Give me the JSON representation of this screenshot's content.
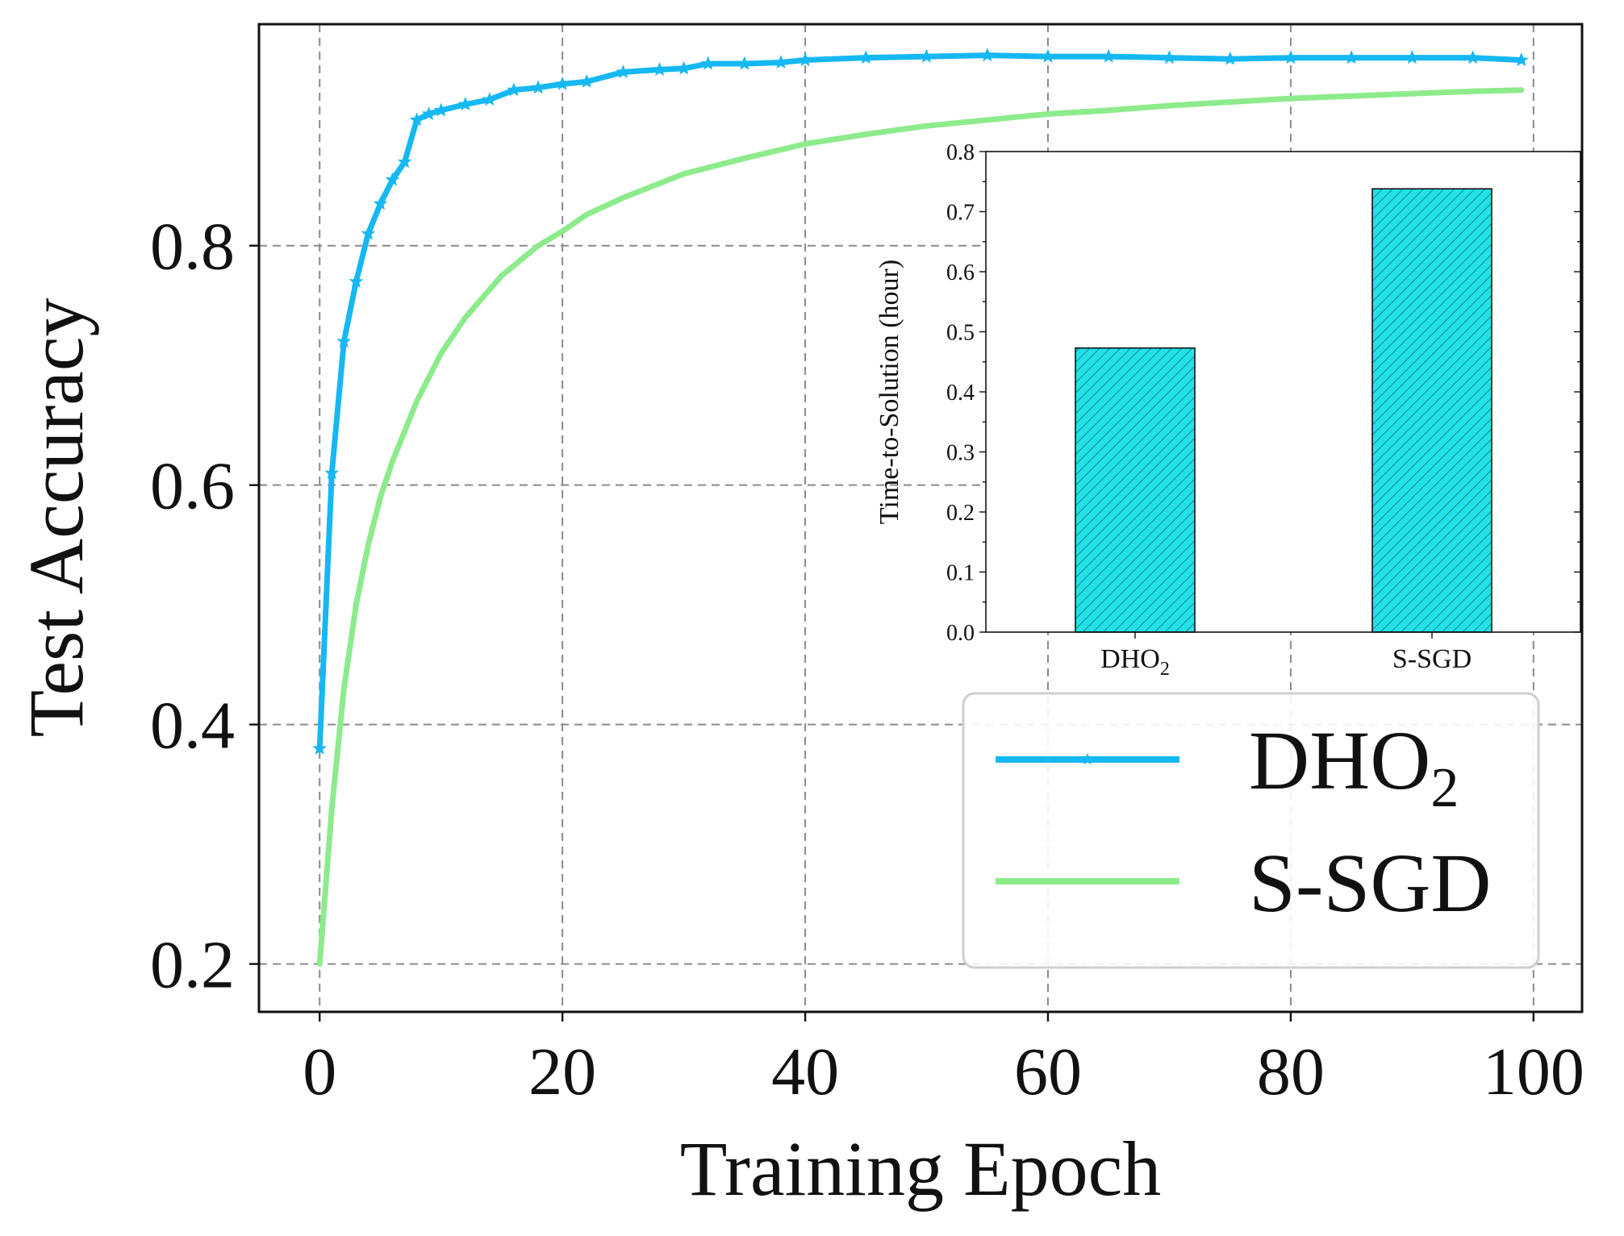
{
  "chart_data": [
    {
      "type": "line",
      "xlabel": "Training Epoch",
      "ylabel": "Test Accuracy",
      "xlim": [
        -5,
        104
      ],
      "ylim": [
        0.16,
        0.985
      ],
      "xticks": [
        0,
        20,
        40,
        60,
        80,
        100
      ],
      "yticks": [
        0.2,
        0.4,
        0.6,
        0.8
      ],
      "xtick_labels": [
        "0",
        "20",
        "40",
        "60",
        "80",
        "100"
      ],
      "ytick_labels": [
        "0.2",
        "0.4",
        "0.6",
        "0.8"
      ],
      "grid": true,
      "legend_position": "lower-right",
      "series": [
        {
          "name": "DHO",
          "name_subscript": "2",
          "color": "#16b8f3",
          "marker": "star",
          "x": [
            0,
            1,
            2,
            3,
            4,
            5,
            6,
            7,
            8,
            9,
            10,
            12,
            14,
            16,
            18,
            20,
            22,
            25,
            28,
            30,
            32,
            35,
            38,
            40,
            45,
            50,
            55,
            60,
            65,
            70,
            75,
            80,
            85,
            90,
            95,
            99
          ],
          "y": [
            0.38,
            0.61,
            0.72,
            0.77,
            0.81,
            0.835,
            0.855,
            0.87,
            0.905,
            0.91,
            0.913,
            0.918,
            0.922,
            0.93,
            0.932,
            0.935,
            0.937,
            0.945,
            0.947,
            0.948,
            0.952,
            0.952,
            0.953,
            0.955,
            0.957,
            0.958,
            0.959,
            0.958,
            0.958,
            0.957,
            0.956,
            0.957,
            0.957,
            0.957,
            0.957,
            0.955
          ]
        },
        {
          "name": "S-SGD",
          "color": "#8deb8c",
          "marker": "none",
          "x": [
            0,
            1,
            2,
            3,
            4,
            5,
            6,
            7,
            8,
            10,
            12,
            15,
            18,
            20,
            22,
            25,
            28,
            30,
            35,
            40,
            45,
            50,
            55,
            60,
            65,
            70,
            75,
            80,
            85,
            90,
            95,
            99
          ],
          "y": [
            0.2,
            0.33,
            0.43,
            0.5,
            0.55,
            0.59,
            0.62,
            0.645,
            0.67,
            0.71,
            0.74,
            0.775,
            0.8,
            0.812,
            0.826,
            0.84,
            0.852,
            0.86,
            0.873,
            0.885,
            0.893,
            0.9,
            0.905,
            0.91,
            0.913,
            0.917,
            0.92,
            0.923,
            0.925,
            0.927,
            0.929,
            0.93
          ]
        }
      ]
    },
    {
      "type": "bar",
      "inset": true,
      "ylabel": "Time-to-Solution (hour)",
      "ylim": [
        0.0,
        0.8
      ],
      "yticks": [
        "0.0",
        "0.1",
        "0.2",
        "0.3",
        "0.4",
        "0.5",
        "0.6",
        "0.7",
        "0.8"
      ],
      "categories": [
        {
          "name": "DHO",
          "subscript": "2"
        },
        {
          "name": "S-SGD",
          "subscript": ""
        }
      ],
      "values": [
        0.473,
        0.738
      ],
      "bar_color": "#22e2e8",
      "hatch": "///"
    }
  ]
}
